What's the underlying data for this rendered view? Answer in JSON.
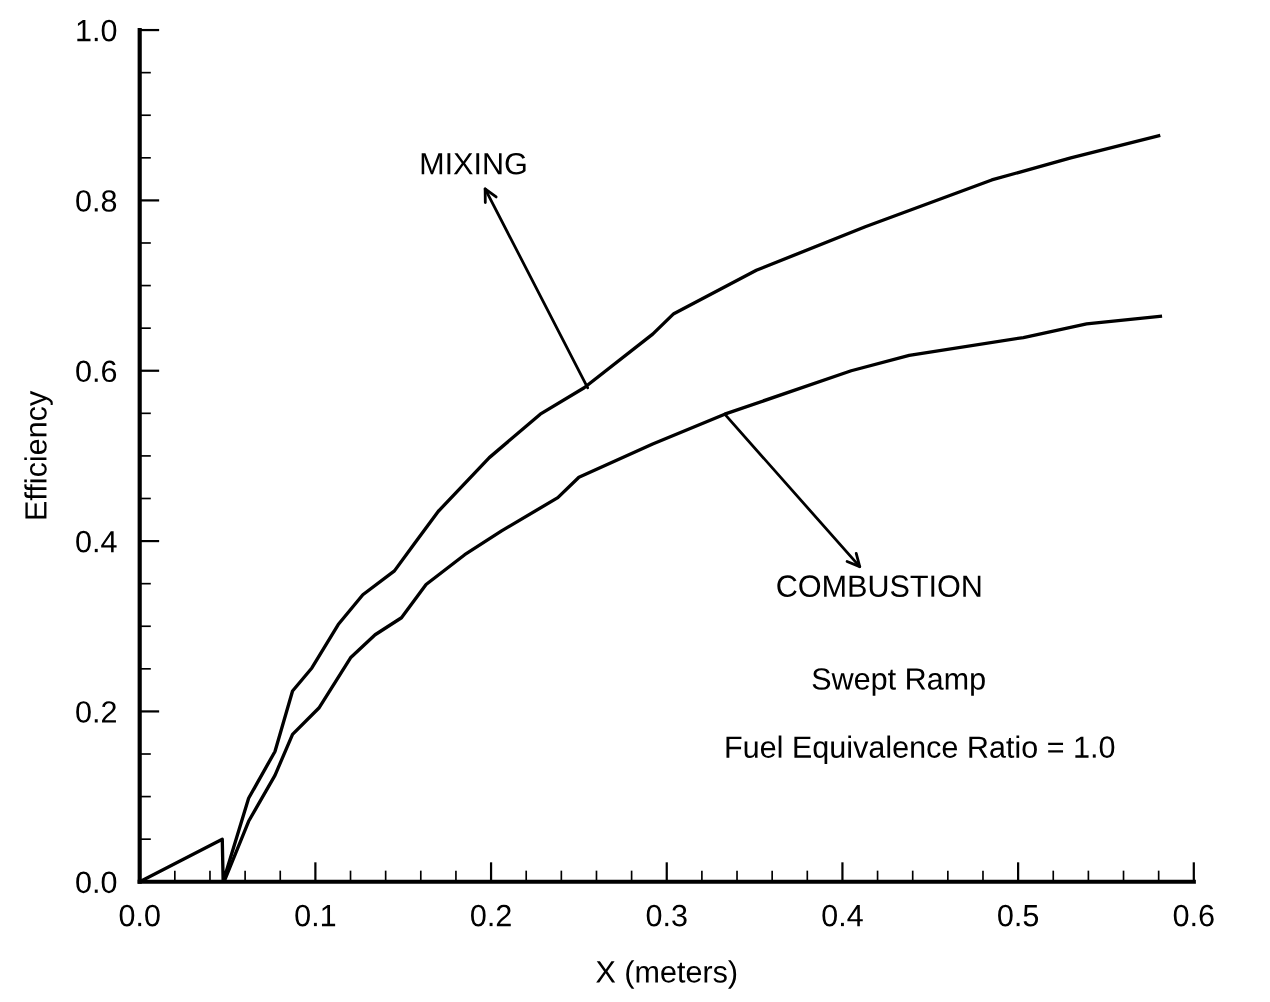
{
  "chart_data": {
    "type": "line",
    "xlabel": "X (meters)",
    "ylabel": "Efficiency",
    "xlim": [
      0,
      0.6
    ],
    "ylim": [
      0,
      1.0
    ],
    "xticks": [
      {
        "value": 0,
        "label": "0.0"
      },
      0.1,
      0.2,
      0.3,
      0.4,
      0.5,
      0.6
    ],
    "yticks": [
      {
        "value": 0,
        "label": "0.0"
      },
      0.2,
      0.4,
      0.6,
      0.8,
      {
        "value": 1,
        "label": "1.0"
      }
    ],
    "grid": false,
    "marker": "none",
    "line_style": "solid",
    "series": [
      {
        "color": "#000000",
        "x": [
          0,
          0.047,
          0.0475,
          0.062,
          0.077,
          0.087,
          0.098,
          0.113,
          0.127,
          0.145,
          0.156,
          0.17,
          0.199,
          0.228,
          0.253,
          0.292,
          0.304,
          0.351,
          0.413,
          0.485,
          0.53,
          0.58
        ],
        "values": [
          0,
          0.05,
          0,
          0.098,
          0.153,
          0.224,
          0.251,
          0.302,
          0.337,
          0.365,
          0.396,
          0.435,
          0.498,
          0.549,
          0.58,
          0.643,
          0.667,
          0.718,
          0.769,
          0.824,
          0.85,
          0.876
        ]
      },
      {
        "color": "#000000",
        "x": [
          0.048,
          0.062,
          0.077,
          0.087,
          0.102,
          0.12,
          0.134,
          0.149,
          0.163,
          0.185,
          0.206,
          0.238,
          0.25,
          0.292,
          0.333,
          0.405,
          0.438,
          0.503,
          0.539,
          0.581
        ],
        "values": [
          0,
          0.071,
          0.125,
          0.173,
          0.204,
          0.263,
          0.29,
          0.31,
          0.349,
          0.384,
          0.412,
          0.451,
          0.475,
          0.514,
          0.549,
          0.6,
          0.618,
          0.639,
          0.655,
          0.664
        ]
      }
    ],
    "annotations": [
      {
        "text": "MIXING",
        "x": 0.255,
        "y": 0.58
      },
      {
        "text": "COMBUSTION",
        "x": 0.333,
        "y": 0.549
      },
      "Swept Ramp",
      "Fuel Equivalence Ratio = 1.0"
    ]
  }
}
